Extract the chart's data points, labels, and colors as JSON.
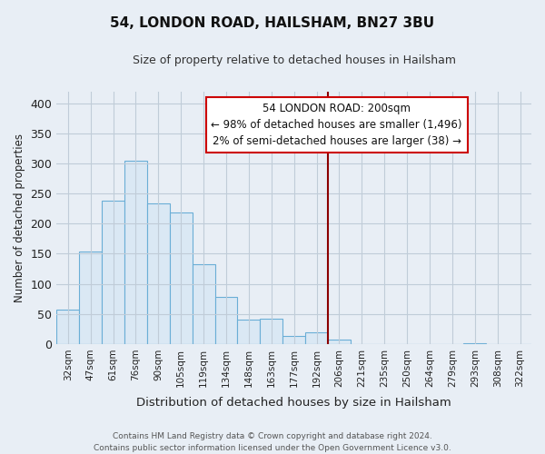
{
  "title": "54, LONDON ROAD, HAILSHAM, BN27 3BU",
  "subtitle": "Size of property relative to detached houses in Hailsham",
  "xlabel": "Distribution of detached houses by size in Hailsham",
  "ylabel": "Number of detached properties",
  "footer_line1": "Contains HM Land Registry data © Crown copyright and database right 2024.",
  "footer_line2": "Contains public sector information licensed under the Open Government Licence v3.0.",
  "bar_labels": [
    "32sqm",
    "47sqm",
    "61sqm",
    "76sqm",
    "90sqm",
    "105sqm",
    "119sqm",
    "134sqm",
    "148sqm",
    "163sqm",
    "177sqm",
    "192sqm",
    "206sqm",
    "221sqm",
    "235sqm",
    "250sqm",
    "264sqm",
    "279sqm",
    "293sqm",
    "308sqm",
    "322sqm"
  ],
  "bar_heights": [
    57,
    154,
    238,
    305,
    233,
    219,
    133,
    78,
    40,
    42,
    14,
    20,
    7,
    0,
    0,
    0,
    0,
    0,
    2,
    0,
    0
  ],
  "bar_color": "#dae8f4",
  "bar_edge_color": "#6aaed6",
  "highlight_color": "#8b0000",
  "annotation_title": "54 LONDON ROAD: 200sqm",
  "annotation_line1": "← 98% of detached houses are smaller (1,496)",
  "annotation_line2": "2% of semi-detached houses are larger (38) →",
  "ylim": [
    0,
    420
  ],
  "yticks": [
    0,
    50,
    100,
    150,
    200,
    250,
    300,
    350,
    400
  ],
  "background_color": "#e8eef5",
  "plot_background": "#e8eef5",
  "grid_color": "#c0ccd8"
}
